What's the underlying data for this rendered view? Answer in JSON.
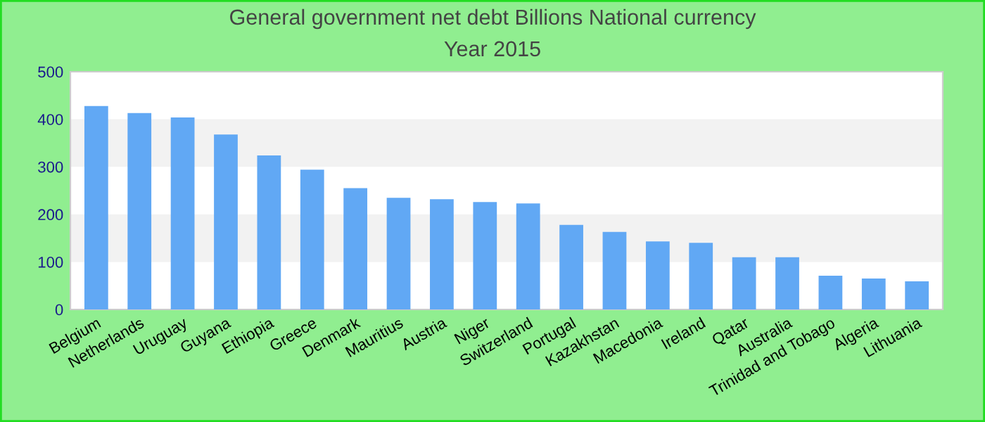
{
  "chart_data": {
    "type": "bar",
    "title": "General government net debt Billions National currency",
    "subtitle": "Year 2015",
    "categories": [
      "Belgium",
      "Netherlands",
      "Uruguay",
      "Guyana",
      "Ethiopia",
      "Greece",
      "Denmark",
      "Mauritius",
      "Austria",
      "Niger",
      "Switzerland",
      "Portugal",
      "Kazakhstan",
      "Macedonia",
      "Ireland",
      "Qatar",
      "Australia",
      "Trinidad and Tobago",
      "Algeria",
      "Lithuania"
    ],
    "values": [
      428,
      413,
      404,
      368,
      324,
      294,
      255,
      235,
      232,
      226,
      223,
      178,
      163,
      143,
      140,
      110,
      110,
      71,
      65,
      59
    ],
    "color": "#61a8f4",
    "ylim": [
      0,
      500
    ],
    "yticks": [
      0,
      100,
      200,
      300,
      400,
      500
    ],
    "grid": false,
    "legend": false,
    "bands": [
      {
        "axis": "y",
        "from": 100,
        "to": 200,
        "color": "#f2f2f2"
      },
      {
        "axis": "y",
        "from": 300,
        "to": 400,
        "color": "#f2f2f2"
      }
    ]
  }
}
